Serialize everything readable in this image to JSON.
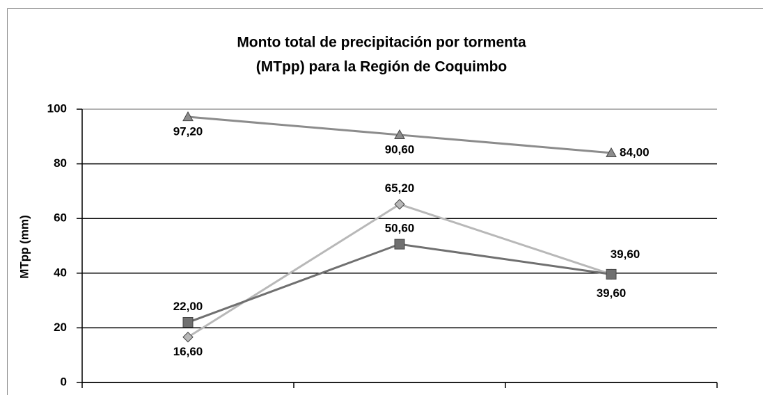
{
  "chart_data": {
    "type": "line",
    "title": [
      "Monto total de precipitación por tormenta",
      "(MTpp) para la Región de Coquimbo"
    ],
    "y_label": "MTpp (mm)",
    "categories": [
      null,
      null,
      null
    ],
    "series": [
      {
        "color": "#8c8c8c",
        "marker": "triangle",
        "values": [
          97.2,
          90.6,
          84.0
        ],
        "value_labels": [
          "97,20",
          "90,60",
          "84,00"
        ]
      },
      {
        "color": "#b8b8b8",
        "marker": "diamond",
        "values": [
          16.6,
          65.2,
          39.6
        ],
        "value_labels": [
          "16,60",
          "65,20",
          "39,60"
        ]
      },
      {
        "color": "#707070",
        "marker": "square",
        "values": [
          22.0,
          50.6,
          39.6
        ],
        "value_labels": [
          "22,00",
          "50,60",
          "39,60"
        ]
      }
    ],
    "ylim": [
      0,
      100
    ],
    "yticks": [
      0,
      20,
      40,
      60,
      80,
      100
    ],
    "grid": true
  }
}
